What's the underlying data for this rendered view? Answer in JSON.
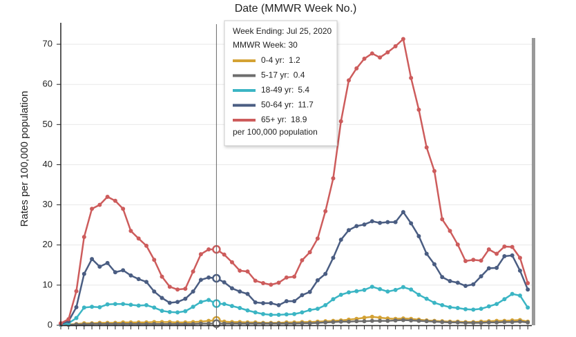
{
  "chart_data": {
    "type": "line",
    "title": "Date (MMWR Week No.)",
    "y_label": "Rates per 100,000 population",
    "categories": [
      null,
      null,
      null,
      null,
      null,
      null,
      null,
      null,
      null,
      null,
      null,
      null,
      null,
      null,
      null,
      null,
      null,
      null,
      null,
      null,
      null,
      null,
      null,
      null,
      null,
      null,
      null,
      null,
      null,
      null,
      null,
      null,
      null,
      null,
      null,
      null,
      null,
      null,
      null,
      null,
      null,
      null,
      null,
      null,
      null,
      null,
      null,
      null,
      null,
      null,
      null,
      null,
      null,
      null,
      null,
      null,
      null,
      null,
      null,
      null,
      null
    ],
    "ylim": [
      0,
      75
    ],
    "yticks": [
      0,
      10,
      20,
      30,
      40,
      50,
      60,
      70
    ],
    "grid": true,
    "series": [
      {
        "name": "0-4 yr:",
        "color": "#d4a234",
        "values": [
          0.1,
          0.2,
          0.3,
          0.5,
          0.5,
          0.6,
          0.6,
          0.6,
          0.7,
          0.7,
          0.7,
          0.7,
          0.8,
          0.8,
          0.8,
          0.7,
          0.7,
          0.8,
          0.9,
          1.1,
          1.2,
          0.9,
          0.8,
          0.8,
          0.7,
          0.7,
          0.6,
          0.6,
          0.6,
          0.7,
          0.7,
          0.8,
          0.8,
          0.9,
          1,
          1.1,
          1.2,
          1.4,
          1.6,
          1.9,
          2.1,
          1.9,
          1.7,
          1.6,
          1.7,
          1.6,
          1.4,
          1.2,
          1.1,
          1,
          0.9,
          0.9,
          0.8,
          0.8,
          0.9,
          1,
          1.1,
          1.1,
          1.2,
          1.3,
          0.9
        ]
      },
      {
        "name": "5-17 yr:",
        "color": "#6d6d6d",
        "values": [
          0.1,
          0.1,
          0.2,
          0.2,
          0.3,
          0.3,
          0.3,
          0.3,
          0.3,
          0.3,
          0.3,
          0.3,
          0.3,
          0.3,
          0.3,
          0.3,
          0.3,
          0.3,
          0.4,
          0.4,
          0.4,
          0.4,
          0.4,
          0.4,
          0.4,
          0.4,
          0.4,
          0.4,
          0.4,
          0.4,
          0.4,
          0.5,
          0.5,
          0.6,
          0.7,
          0.8,
          0.9,
          0.9,
          1,
          1,
          1.1,
          1.1,
          1.1,
          1.2,
          1.3,
          1.2,
          1.1,
          1,
          0.9,
          0.8,
          0.7,
          0.7,
          0.6,
          0.6,
          0.6,
          0.7,
          0.7,
          0.8,
          0.8,
          0.9,
          0.7
        ]
      },
      {
        "name": "18-49 yr:",
        "color": "#3bb5c4",
        "values": [
          0.2,
          0.5,
          1.8,
          4.4,
          4.6,
          4.5,
          5.2,
          5.3,
          5.3,
          5.1,
          4.9,
          5,
          4.4,
          3.6,
          3.3,
          3.2,
          3.5,
          4.6,
          5.8,
          6.3,
          5.4,
          5.3,
          4.8,
          4.3,
          3.7,
          3.2,
          2.8,
          2.6,
          2.6,
          2.7,
          2.8,
          3.2,
          3.8,
          4.1,
          5,
          6.5,
          7.6,
          8.2,
          8.5,
          8.8,
          9.6,
          9,
          8.4,
          8.8,
          9.5,
          8.9,
          7.6,
          6.6,
          5.6,
          5,
          4.5,
          4.3,
          4,
          3.9,
          4.1,
          4.7,
          5.3,
          6.5,
          7.8,
          7.4,
          4.4
        ]
      },
      {
        "name": "50-64 yr:",
        "color": "#4a5d82",
        "values": [
          0.3,
          1,
          4.5,
          12.8,
          16.5,
          14.6,
          15.5,
          13.2,
          13.7,
          12.4,
          11.5,
          10.8,
          8.4,
          6.8,
          5.6,
          5.8,
          6.6,
          8.4,
          11.3,
          11.9,
          11.7,
          10.7,
          9.2,
          8.4,
          7.8,
          5.7,
          5.5,
          5.5,
          5,
          6,
          6,
          7.5,
          8.3,
          11.2,
          12.8,
          16.8,
          21.3,
          23.7,
          24.7,
          25.1,
          25.9,
          25.5,
          25.7,
          25.7,
          28.2,
          25.4,
          22.2,
          17.8,
          15.2,
          12,
          11,
          10.6,
          9.8,
          10.2,
          12.2,
          14.2,
          14.3,
          17.2,
          17.4,
          13.6,
          8.9
        ]
      },
      {
        "name": "65+ yr:",
        "color": "#cd5c5c",
        "values": [
          0.5,
          1.5,
          8.5,
          22,
          29,
          30,
          32,
          31,
          29,
          23.5,
          21.6,
          19.8,
          16.3,
          12.1,
          9.6,
          8.9,
          9.1,
          13.4,
          17.7,
          18.9,
          18.9,
          17.6,
          15.7,
          13.6,
          13.4,
          11.1,
          10.5,
          10.1,
          10.6,
          11.9,
          12.1,
          16.2,
          18.2,
          21.6,
          28.4,
          36.6,
          50.8,
          61,
          64,
          66.4,
          67.7,
          66.7,
          68,
          69.5,
          71.3,
          61.6,
          53.7,
          44.3,
          38.4,
          26.4,
          23.5,
          20.1,
          16,
          16.3,
          16.1,
          18.9,
          17.8,
          19.6,
          19.5,
          16.8,
          10.5
        ]
      }
    ],
    "tooltip": {
      "week_ending": "Week Ending: Jul 25, 2020",
      "mmwr_week": "MMWR Week: 30",
      "footer": "per 100,000 population"
    }
  }
}
